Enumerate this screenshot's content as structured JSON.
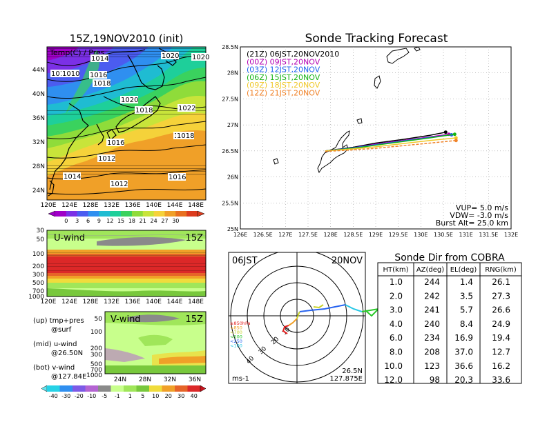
{
  "colors": {
    "temp": [
      "#a000c8",
      "#7b30e6",
      "#4b5cf0",
      "#2f8ff0",
      "#1fbcd2",
      "#1ecf9a",
      "#3ad25e",
      "#8fdc3a",
      "#c8e43a",
      "#f5d23a",
      "#f0a028",
      "#e87020",
      "#dc3c1e"
    ],
    "wind": [
      "#26d2e6",
      "#2f8ff0",
      "#7d5ae6",
      "#b464d2",
      "#8a8a8a",
      "#c8ff8c",
      "#a0e65a",
      "#78c83c",
      "#f0dc3c",
      "#f0a028",
      "#e66428",
      "#dc2828"
    ],
    "altitudes": [
      "#e61e1e",
      "#f0a028",
      "#c8d228",
      "#28c828",
      "#2864f0",
      "#28c8e6"
    ],
    "tracks": [
      "#000000",
      "#b400b4",
      "#1e64f0",
      "#14b414",
      "#f0c828",
      "#f08228"
    ]
  },
  "left_map": {
    "title": "15Z,19NOV2010 (init)",
    "label": "Temp(C) / Pres",
    "pres_labels": [
      "1014",
      "1016",
      "1010",
      "1018",
      "1020",
      "1018",
      "1018",
      "1016",
      "1012",
      "1020",
      "1022",
      "1014",
      "1016",
      "1018",
      "1012",
      "1010",
      "1020"
    ],
    "lat_ticks": [
      "44N",
      "40N",
      "36N",
      "32N",
      "28N",
      "24N"
    ],
    "lon_ticks": [
      "120E",
      "124E",
      "128E",
      "132E",
      "136E",
      "140E",
      "144E",
      "148E"
    ],
    "colorbar": [
      "0",
      "3",
      "6",
      "9",
      "12",
      "15",
      "18",
      "21",
      "24",
      "27",
      "30"
    ]
  },
  "u_panel": {
    "title": "U-wind",
    "time": "15Z",
    "levels": [
      "30",
      "50",
      "100",
      "200",
      "300",
      "500",
      "700",
      "1000"
    ],
    "lon_ticks": [
      "120E",
      "124E",
      "128E",
      "132E",
      "136E",
      "140E",
      "144E",
      "148E"
    ]
  },
  "v_panel": {
    "title": "V-wind",
    "time": "15Z",
    "levels": [
      "50",
      "100",
      "200",
      "300",
      "500",
      "700",
      "1000"
    ],
    "lat_ticks": [
      "24N",
      "28N",
      "32N",
      "36N"
    ]
  },
  "legend_text": {
    "up": "(up) tmp+pres",
    "up2": "@surf",
    "mid": "(mid) u-wind",
    "mid2": "@26.50N",
    "bot": "(bot) v-wind",
    "bot2": "@127.84E"
  },
  "wind_colorbar": [
    "-40",
    "-30",
    "-20",
    "-10",
    "-5",
    "-1",
    "1",
    "5",
    "10",
    "20",
    "30",
    "40"
  ],
  "track": {
    "title": "Sonde Tracking Forecast",
    "legend": [
      {
        "label": "(21Z) 06JST,20NOV2010"
      },
      {
        "label": "(00Z) 09JST,20NOV"
      },
      {
        "label": "(03Z) 12JST,20NOV"
      },
      {
        "label": "(06Z) 15JST,20NOV"
      },
      {
        "label": "(09Z) 18JST,20NOV"
      },
      {
        "label": "(12Z) 21JST,20NOV"
      }
    ],
    "lat_ticks": [
      "28.5N",
      "28N",
      "27.5N",
      "27N",
      "26.5N",
      "26N",
      "25.5N",
      "25N"
    ],
    "lon_ticks": [
      "126E",
      "126.5E",
      "127E",
      "127.5E",
      "128E",
      "128.5E",
      "129E",
      "129.5E",
      "130E",
      "130.5E",
      "131E",
      "131.5E",
      "132E"
    ],
    "vup": "VUP= 5.0 m/s",
    "vdw": "VDW= -3.0 m/s",
    "burst": "Burst Alt= 25.0 km"
  },
  "polar": {
    "time": "06JST",
    "date": "20NOV",
    "rings": [
      "10",
      "20",
      "30",
      "40"
    ],
    "alt_labels": [
      "≥850hPa",
      "<850",
      "<700",
      "<500",
      "<250",
      "<100"
    ],
    "pos_lat": "26.5N",
    "pos_lon": "127.875E",
    "unit": "ms-1"
  },
  "table": {
    "title": "Sonde Dir from COBRA",
    "headers": [
      "HT(km)",
      "AZ(deg)",
      "EL(deg)",
      "RNG(km)"
    ],
    "rows": [
      [
        "1.0",
        "244",
        "1.4",
        "26.1"
      ],
      [
        "2.0",
        "242",
        "3.5",
        "27.3"
      ],
      [
        "3.0",
        "241",
        "5.7",
        "26.6"
      ],
      [
        "4.0",
        "240",
        "8.4",
        "24.9"
      ],
      [
        "6.0",
        "234",
        "16.9",
        "19.4"
      ],
      [
        "8.0",
        "208",
        "37.0",
        "12.7"
      ],
      [
        "10.0",
        "123",
        "36.6",
        "16.2"
      ],
      [
        "12.0",
        "98",
        "20.3",
        "33.6"
      ]
    ]
  },
  "chart_data": [
    {
      "type": "table",
      "title": "Sonde Dir from COBRA",
      "columns": [
        "HT(km)",
        "AZ(deg)",
        "EL(deg)",
        "RNG(km)"
      ],
      "ht": [
        1.0,
        2.0,
        3.0,
        4.0,
        6.0,
        8.0,
        10.0,
        12.0
      ],
      "az": [
        244,
        242,
        241,
        240,
        234,
        208,
        123,
        98
      ],
      "el": [
        1.4,
        3.5,
        5.7,
        8.4,
        16.9,
        37.0,
        36.6,
        20.3
      ],
      "rng": [
        26.1,
        27.3,
        26.6,
        24.9,
        19.4,
        12.7,
        16.2,
        33.6
      ]
    },
    {
      "type": "line",
      "title": "Sonde Tracking Forecast",
      "xlim": [
        126,
        132
      ],
      "ylim": [
        25,
        28.5
      ],
      "series": [
        {
          "name": "(21Z) 06JST,20NOV2010",
          "x": [
            127.88,
            128.5,
            129.0,
            129.6,
            130.2,
            130.55
          ],
          "y": [
            26.5,
            26.57,
            26.65,
            26.72,
            26.8,
            26.86
          ]
        },
        {
          "name": "(00Z) 09JST,20NOV",
          "x": [
            127.88,
            128.5,
            129.0,
            129.6,
            130.2,
            130.62
          ],
          "y": [
            26.5,
            26.56,
            26.63,
            26.7,
            26.77,
            26.82
          ]
        },
        {
          "name": "(03Z) 12JST,20NOV",
          "x": [
            127.88,
            128.5,
            129.0,
            129.6,
            130.2,
            130.68
          ],
          "y": [
            26.5,
            26.56,
            26.62,
            26.69,
            26.76,
            26.81
          ]
        },
        {
          "name": "(06Z) 15JST,20NOV",
          "x": [
            127.88,
            128.5,
            129.0,
            129.6,
            130.2,
            130.75
          ],
          "y": [
            26.5,
            26.55,
            26.61,
            26.68,
            26.75,
            26.82
          ]
        },
        {
          "name": "(09Z) 18JST,20NOV",
          "x": [
            127.88,
            128.5,
            129.0,
            129.6,
            130.2,
            130.78
          ],
          "y": [
            26.5,
            26.54,
            26.58,
            26.64,
            26.7,
            26.75
          ]
        },
        {
          "name": "(12Z) 21JST,20NOV",
          "x": [
            127.88,
            128.5,
            129.0,
            129.6,
            130.2,
            130.78
          ],
          "y": [
            26.49,
            26.52,
            26.55,
            26.6,
            26.65,
            26.7
          ]
        }
      ]
    }
  ]
}
